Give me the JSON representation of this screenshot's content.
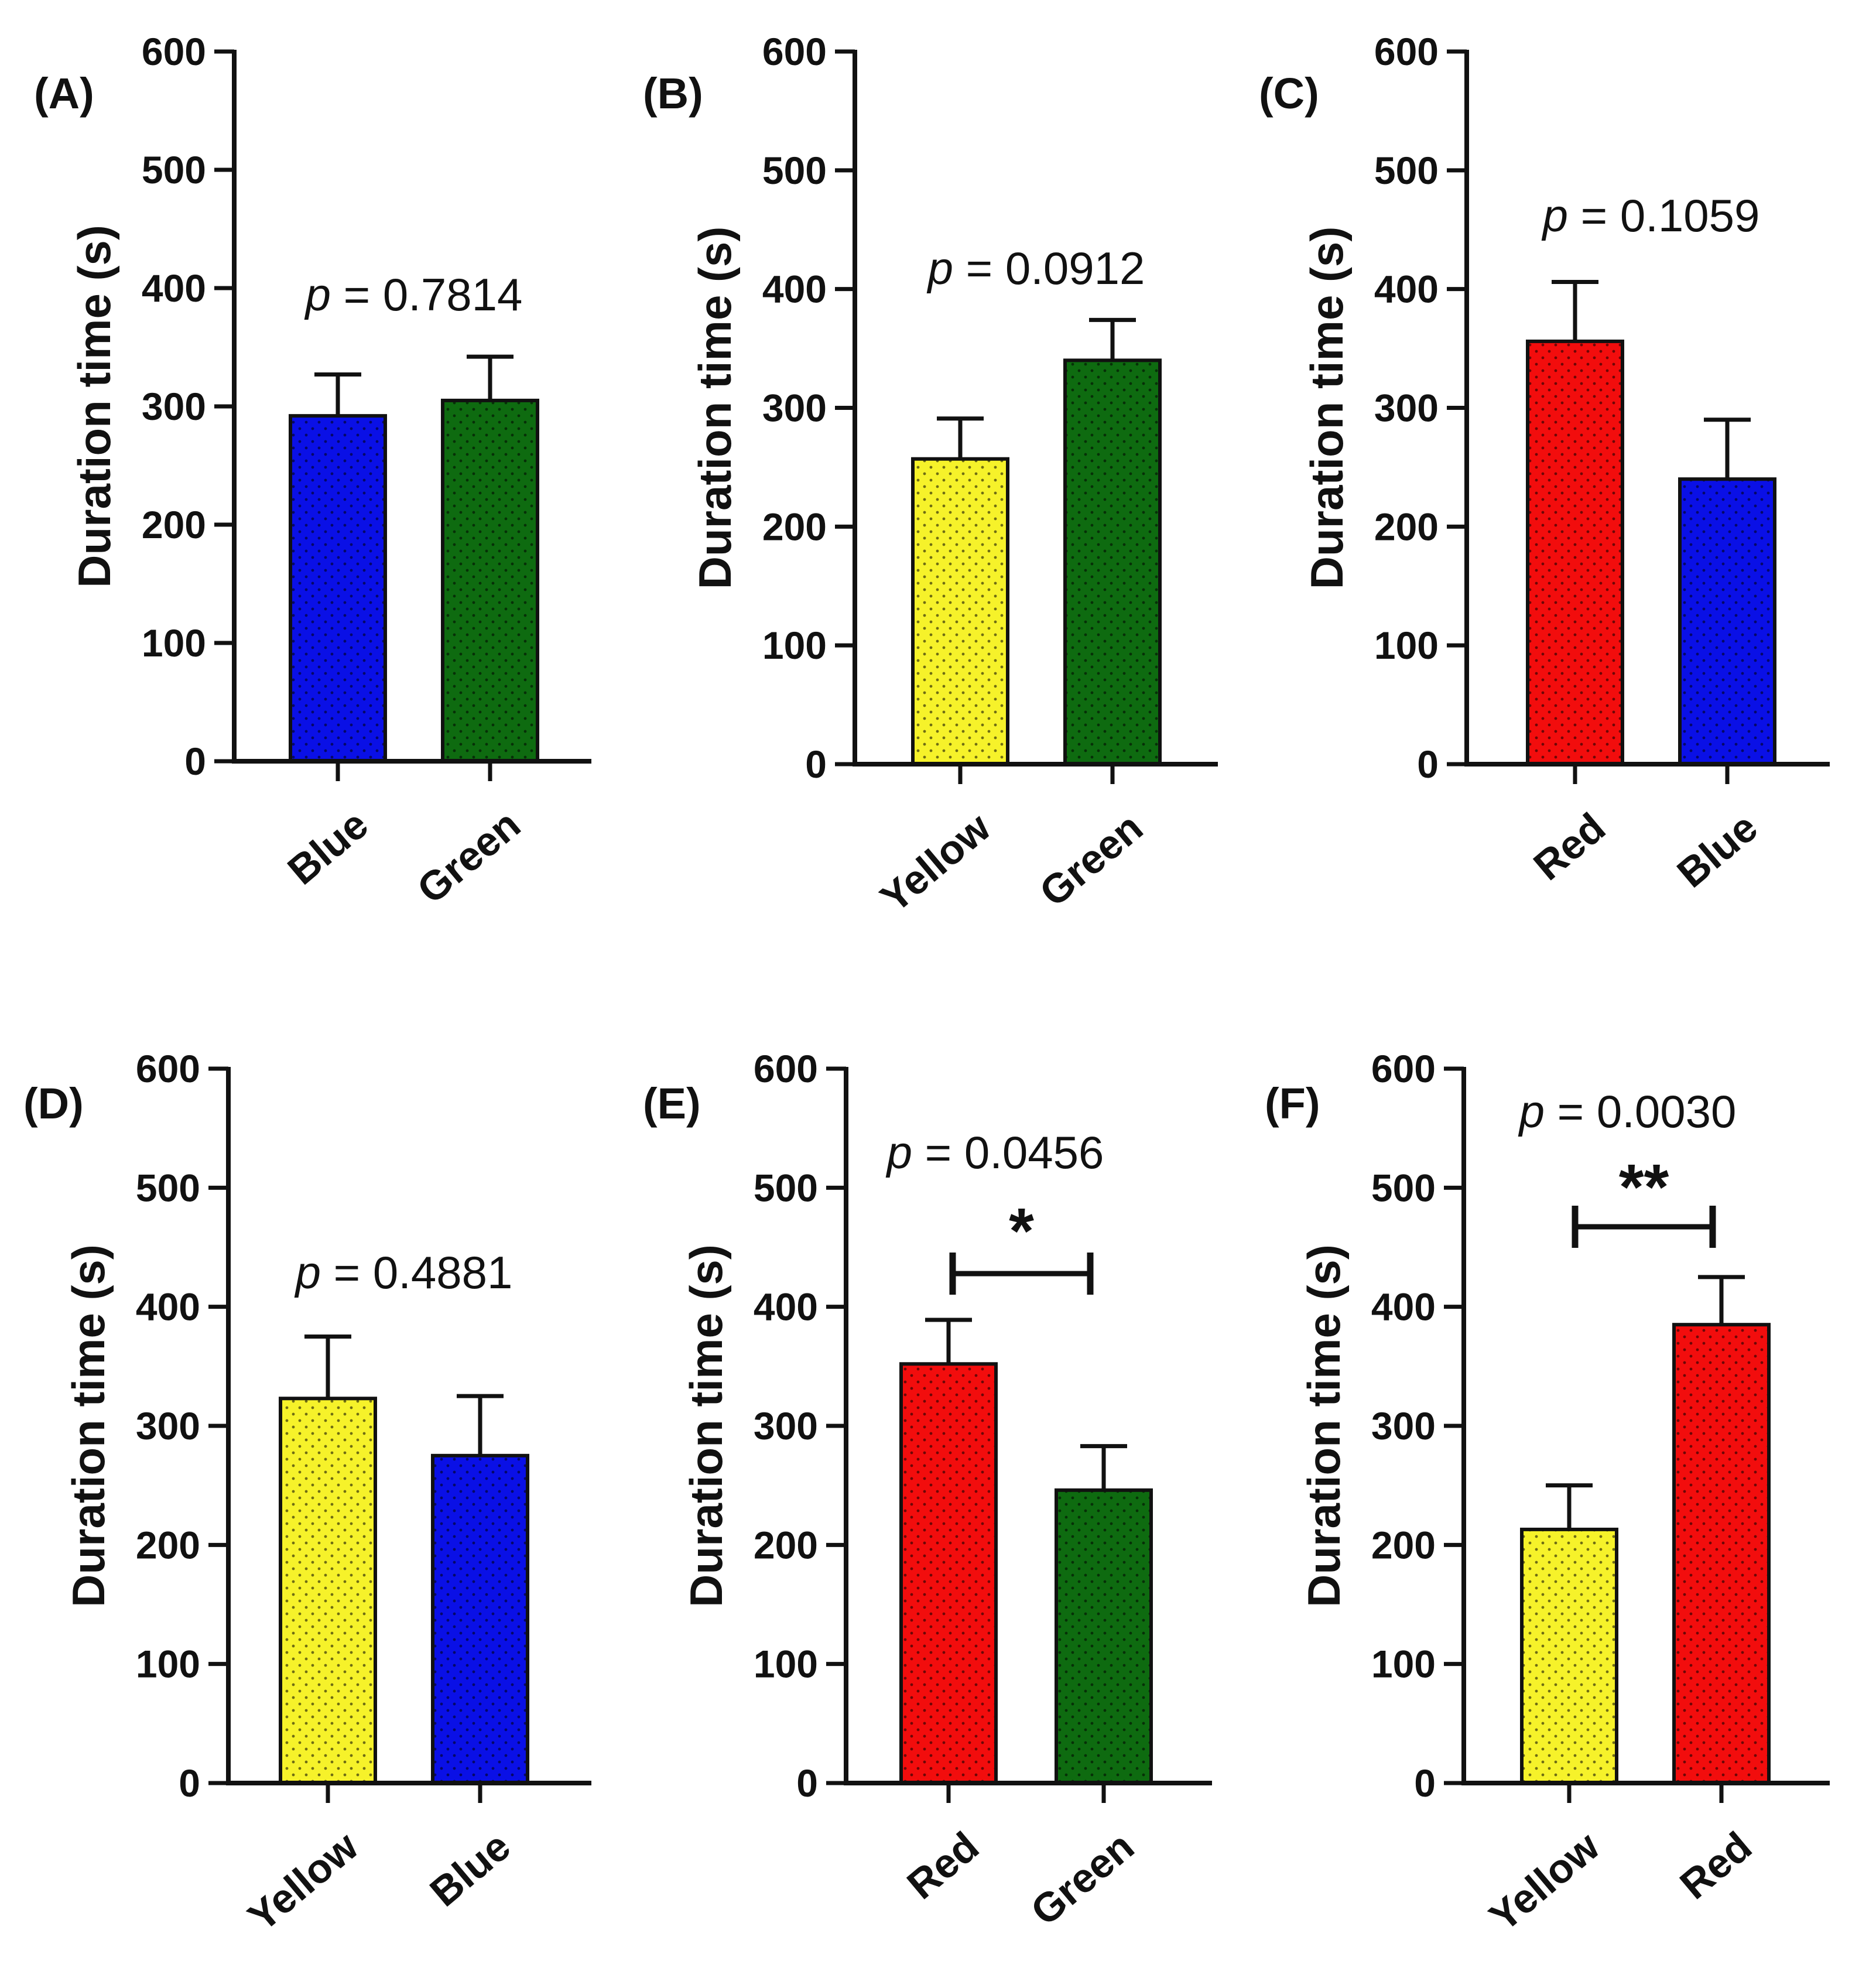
{
  "chart_data": [
    {
      "type": "bar",
      "panel": "(A)",
      "ylabel": "Duration time (s)",
      "ylim": [
        0,
        600
      ],
      "yticks": [
        "0",
        "100",
        "200",
        "300",
        "400",
        "500",
        "600"
      ],
      "categories": [
        "Blue",
        "Green"
      ],
      "values": [
        292,
        305
      ],
      "errors": [
        35,
        37
      ],
      "colors": [
        "#0a10e6",
        "#0e6b10"
      ],
      "p_prefix": "p",
      "p_value": " = 0.7814",
      "significance": ""
    },
    {
      "type": "bar",
      "panel": "(B)",
      "ylabel": "Duration time (s)",
      "ylim": [
        0,
        600
      ],
      "yticks": [
        "0",
        "100",
        "200",
        "300",
        "400",
        "500",
        "600"
      ],
      "categories": [
        "Yellow",
        "Green"
      ],
      "values": [
        257,
        340
      ],
      "errors": [
        34,
        34
      ],
      "colors": [
        "#f6f22a",
        "#0e6b10"
      ],
      "p_prefix": "p",
      "p_value": " = 0.0912",
      "significance": ""
    },
    {
      "type": "bar",
      "panel": "(C)",
      "ylabel": "Duration time (s)",
      "ylim": [
        0,
        600
      ],
      "yticks": [
        "0",
        "100",
        "200",
        "300",
        "400",
        "500",
        "600"
      ],
      "categories": [
        "Red",
        "Blue"
      ],
      "values": [
        356,
        240
      ],
      "errors": [
        50,
        50
      ],
      "colors": [
        "#f20d0d",
        "#0a10e6"
      ],
      "p_prefix": "p",
      "p_value": " = 0.1059",
      "significance": ""
    },
    {
      "type": "bar",
      "panel": "(D)",
      "ylabel": "Duration time (s)",
      "ylim": [
        0,
        600
      ],
      "yticks": [
        "0",
        "100",
        "200",
        "300",
        "400",
        "500",
        "600"
      ],
      "categories": [
        "Yellow",
        "Blue"
      ],
      "values": [
        323,
        275
      ],
      "errors": [
        52,
        50
      ],
      "colors": [
        "#f6f22a",
        "#0a10e6"
      ],
      "p_prefix": "p",
      "p_value": " = 0.4881",
      "significance": ""
    },
    {
      "type": "bar",
      "panel": "(E)",
      "ylabel": "Duration time (s)",
      "ylim": [
        0,
        600
      ],
      "yticks": [
        "0",
        "100",
        "200",
        "300",
        "400",
        "500",
        "600"
      ],
      "categories": [
        "Red",
        "Green"
      ],
      "values": [
        352,
        246
      ],
      "errors": [
        37,
        37
      ],
      "colors": [
        "#f20d0d",
        "#0e6b10"
      ],
      "p_prefix": "p",
      "p_value": " = 0.0456",
      "significance": "*"
    },
    {
      "type": "bar",
      "panel": "(F)",
      "ylabel": "Duration time (s)",
      "ylim": [
        0,
        600
      ],
      "yticks": [
        "0",
        "100",
        "200",
        "300",
        "400",
        "500",
        "600"
      ],
      "categories": [
        "Yellow",
        "Red"
      ],
      "values": [
        213,
        385
      ],
      "errors": [
        37,
        40
      ],
      "colors": [
        "#f6f22a",
        "#f20d0d"
      ],
      "p_prefix": "p",
      "p_value": " = 0.0030",
      "significance": "**"
    }
  ]
}
